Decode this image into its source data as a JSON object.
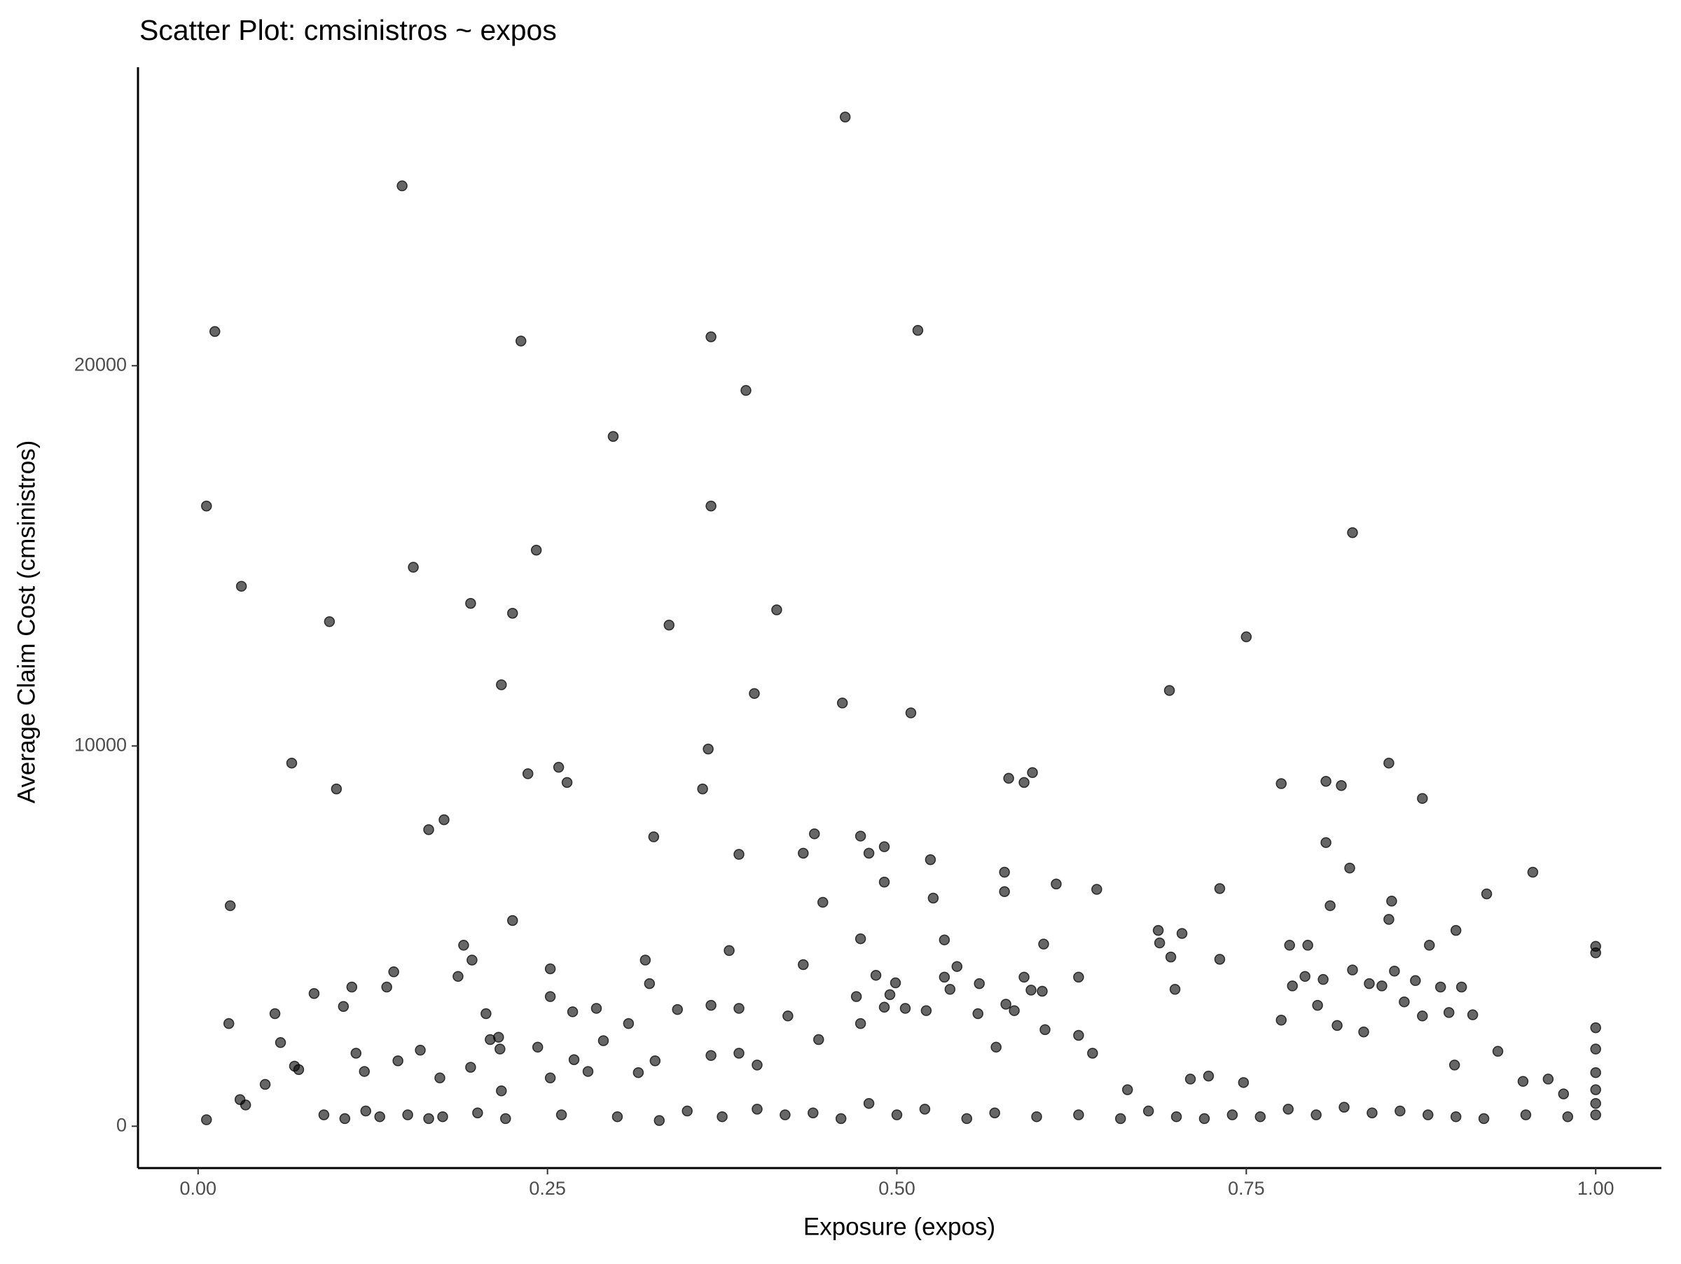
{
  "chart_data": {
    "type": "scatter",
    "title": "Scatter Plot: cmsinistros ~ expos",
    "x_label": "Exposure (expos)",
    "y_label": "Average Claim Cost (cmsinistros)",
    "color": "#000000",
    "xlim": [
      -0.043,
      1.047
    ],
    "ylim": [
      -1100,
      27850
    ],
    "xticks": [
      {
        "value": 0,
        "label": "0.00"
      },
      {
        "value": 0.25,
        "label": "0.25"
      },
      {
        "value": 0.5,
        "label": "0.50"
      },
      {
        "value": 0.75,
        "label": "0.75"
      },
      {
        "value": 1,
        "label": "1.00"
      }
    ],
    "yticks": [
      0,
      10000,
      20000
    ],
    "grid": false,
    "x": [
      0.006,
      0.012,
      0.031,
      0.023,
      0.022,
      0.067,
      0.099,
      0.094,
      0.146,
      0.154,
      0.165,
      0.176,
      0.195,
      0.217,
      0.225,
      0.225,
      0.231,
      0.236,
      0.242,
      0.258,
      0.264,
      0.297,
      0.326,
      0.337,
      0.361,
      0.365,
      0.367,
      0.367,
      0.387,
      0.392,
      0.398,
      0.414,
      0.433,
      0.441,
      0.447,
      0.461,
      0.463,
      0.474,
      0.48,
      0.491,
      0.491,
      0.51,
      0.515,
      0.524,
      0.526,
      0.534,
      0.58,
      0.577,
      0.577,
      0.591,
      0.597,
      0.614,
      0.643,
      0.695,
      0.687,
      0.704,
      0.731,
      0.75,
      0.775,
      0.807,
      0.818,
      0.807,
      0.81,
      0.824,
      0.826,
      0.852,
      0.852,
      0.854,
      0.876,
      0.881,
      0.9,
      0.922,
      0.955,
      1.0,
      1.0,
      0.03,
      0.034,
      0.048,
      0.055,
      0.059,
      0.069,
      0.072,
      0.083,
      0.104,
      0.11,
      0.113,
      0.119,
      0.135,
      0.14,
      0.143,
      0.159,
      0.173,
      0.186,
      0.19,
      0.196,
      0.195,
      0.206,
      0.209,
      0.215,
      0.216,
      0.217,
      0.243,
      0.252,
      0.252,
      0.252,
      0.268,
      0.269,
      0.279,
      0.285,
      0.29,
      0.308,
      0.315,
      0.32,
      0.323,
      0.327,
      0.343,
      0.367,
      0.367,
      0.38,
      0.387,
      0.387,
      0.4,
      0.422,
      0.433,
      0.444,
      0.471,
      0.474,
      0.474,
      0.485,
      0.491,
      0.495,
      0.499,
      0.506,
      0.521,
      0.534,
      0.538,
      0.543,
      0.558,
      0.559,
      0.571,
      0.578,
      0.584,
      0.591,
      0.596,
      0.604,
      0.605,
      0.606,
      0.63,
      0.63,
      0.64,
      0.665,
      0.688,
      0.696,
      0.699,
      0.71,
      0.723,
      0.731,
      0.748,
      0.775,
      0.781,
      0.783,
      0.792,
      0.794,
      0.801,
      0.805,
      0.815,
      0.826,
      0.834,
      0.838,
      0.847,
      0.856,
      0.863,
      0.871,
      0.876,
      0.889,
      0.895,
      0.899,
      0.904,
      0.912,
      0.93,
      0.948,
      0.966,
      0.977,
      1.0,
      1.0,
      1.0,
      1.0,
      0.006,
      0.09,
      0.105,
      0.12,
      0.13,
      0.15,
      0.165,
      0.175,
      0.2,
      0.22,
      0.26,
      0.3,
      0.33,
      0.35,
      0.375,
      0.4,
      0.42,
      0.44,
      0.46,
      0.48,
      0.5,
      0.52,
      0.55,
      0.57,
      0.6,
      0.63,
      0.66,
      0.68,
      0.7,
      0.72,
      0.74,
      0.76,
      0.78,
      0.8,
      0.82,
      0.84,
      0.86,
      0.88,
      0.9,
      0.92,
      0.95,
      0.98,
      1.0,
      1.0
    ],
    "y": [
      16310,
      20900,
      14200,
      5800,
      2700,
      9550,
      8870,
      13270,
      24730,
      14700,
      7800,
      8060,
      13750,
      11610,
      13490,
      5410,
      20650,
      9270,
      15150,
      9440,
      9040,
      18140,
      7610,
      13180,
      8870,
      9920,
      20760,
      16310,
      7150,
      19350,
      11380,
      13580,
      7180,
      7690,
      5890,
      11130,
      26540,
      7630,
      7180,
      7350,
      6420,
      10870,
      20930,
      7010,
      6000,
      4900,
      9150,
      6680,
      6170,
      9040,
      9300,
      6370,
      6230,
      11460,
      5150,
      5070,
      6250,
      12870,
      9010,
      9070,
      8960,
      7460,
      5800,
      6790,
      15610,
      9550,
      5440,
      5920,
      8620,
      4760,
      5150,
      6110,
      6680,
      4730,
      4560,
      700,
      560,
      1100,
      2960,
      2200,
      1580,
      1490,
      3490,
      3150,
      3660,
      1920,
      1440,
      3660,
      4060,
      1720,
      2000,
      1270,
      3940,
      4760,
      4370,
      1550,
      2960,
      2280,
      2340,
      2030,
      930,
      2080,
      4140,
      3410,
      1270,
      3010,
      1750,
      1440,
      3100,
      2250,
      2700,
      1410,
      4370,
      3750,
      1720,
      3070,
      3180,
      1860,
      4620,
      3100,
      1920,
      1610,
      2900,
      4250,
      2280,
      3410,
      4930,
      2700,
      3970,
      3130,
      3460,
      3770,
      3100,
      3040,
      3920,
      3600,
      4200,
      2960,
      3750,
      2080,
      3210,
      3040,
      3920,
      3580,
      3550,
      4790,
      2540,
      3920,
      2390,
      1920,
      960,
      4820,
      4450,
      3600,
      1240,
      1320,
      4390,
      1150,
      2790,
      4760,
      3690,
      3940,
      4760,
      3180,
      3860,
      2650,
      4110,
      2480,
      3750,
      3690,
      4080,
      3270,
      3830,
      2900,
      3660,
      2990,
      1610,
      3660,
      2930,
      1970,
      1180,
      1240,
      850,
      2590,
      2030,
      1410,
      960,
      170,
      300,
      200,
      400,
      250,
      300,
      200,
      250,
      350,
      200,
      300,
      250,
      150,
      400,
      250,
      450,
      300,
      350,
      200,
      600,
      300,
      450,
      200,
      350,
      250,
      300,
      200,
      400,
      250,
      200,
      300,
      250,
      450,
      300,
      500,
      350,
      400,
      300,
      250,
      200,
      300,
      250,
      300,
      600
    ]
  }
}
